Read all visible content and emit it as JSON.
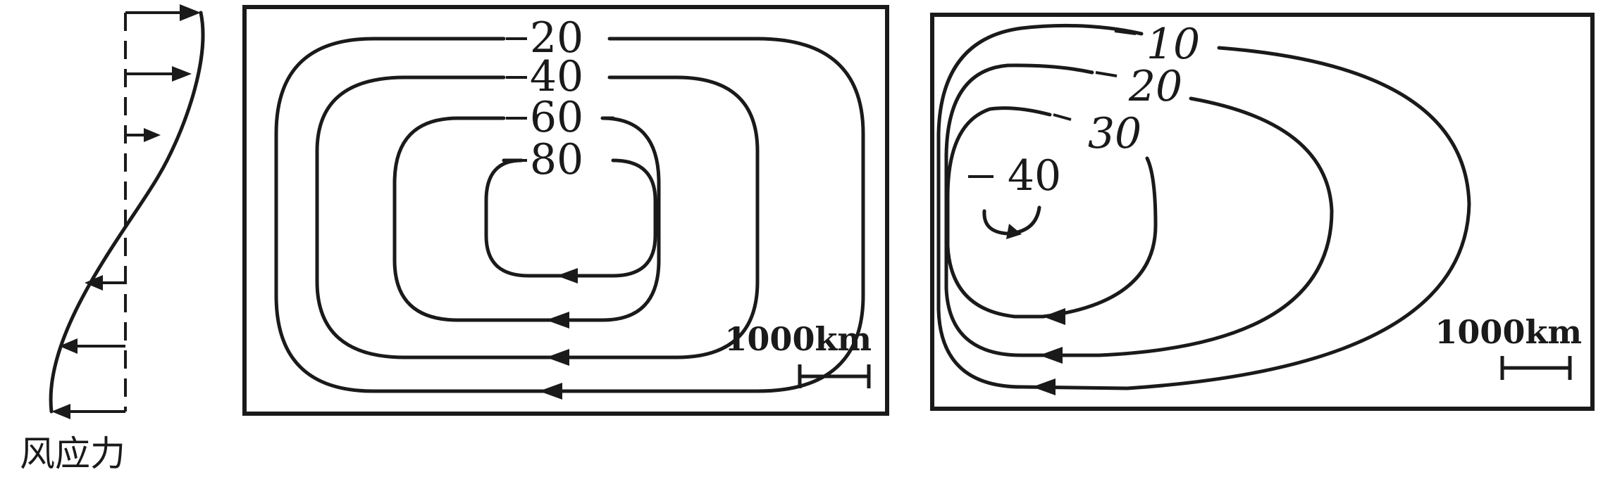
{
  "wind_stress": {
    "label": "风应力"
  },
  "panel_a": {
    "contours": [
      "20",
      "40",
      "60",
      "80"
    ],
    "scale_label": "1000km"
  },
  "panel_b": {
    "contours": [
      "10",
      "20",
      "30",
      "40"
    ],
    "scale_label": "1000km"
  },
  "colors": {
    "ink": "#1a1a1a",
    "background": "#ffffff"
  }
}
